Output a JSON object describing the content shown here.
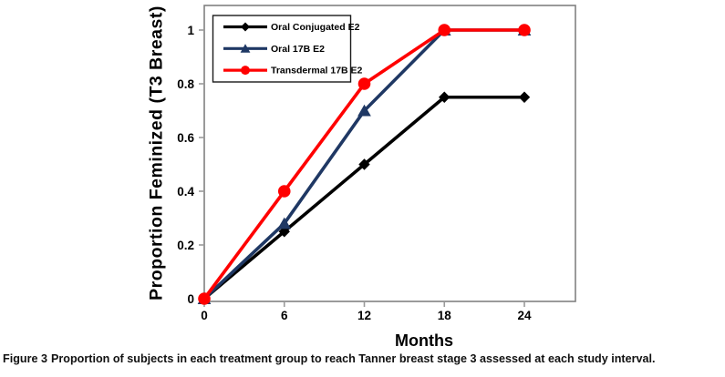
{
  "figure": {
    "caption_label": "Figure 3",
    "caption_text": "Proportion of subjects in each treatment group to reach Tanner breast stage 3 assessed at each study interval."
  },
  "chart_data": {
    "type": "line",
    "title": "",
    "xlabel": "Months",
    "ylabel": "Proportion Feminized (T3 Breast)",
    "x": [
      0,
      6,
      12,
      18,
      24
    ],
    "x_tick_labels": [
      "0",
      "6",
      "12",
      "18",
      "24"
    ],
    "y_tick_values": [
      0,
      0.2,
      0.4,
      0.6,
      0.8,
      1
    ],
    "y_tick_labels": [
      "0",
      "0.2",
      "0.4",
      "0.6",
      "0.8",
      "1"
    ],
    "xlim": [
      0,
      27.8
    ],
    "ylim": [
      -0.01,
      1.09
    ],
    "grid": false,
    "legend_position": "top-left-inside",
    "series": [
      {
        "name": "Oral Conjugated E2",
        "color": "#000000",
        "marker": "diamond",
        "values": [
          0,
          0.25,
          0.5,
          0.75,
          0.75
        ]
      },
      {
        "name": "Oral 17B E2",
        "color": "#1F3864",
        "marker": "triangle",
        "values": [
          0,
          0.28,
          0.7,
          1,
          1
        ]
      },
      {
        "name": "Transdermal 17B E2",
        "color": "#FF0000",
        "marker": "circle",
        "values": [
          0,
          0.4,
          0.8,
          1,
          1
        ]
      }
    ]
  },
  "colors": {
    "axis_border": "#808080",
    "tick_mark": "#9a9a9a",
    "legend_border": "#1a1a1a",
    "background": "#ffffff",
    "text": "#000000"
  }
}
